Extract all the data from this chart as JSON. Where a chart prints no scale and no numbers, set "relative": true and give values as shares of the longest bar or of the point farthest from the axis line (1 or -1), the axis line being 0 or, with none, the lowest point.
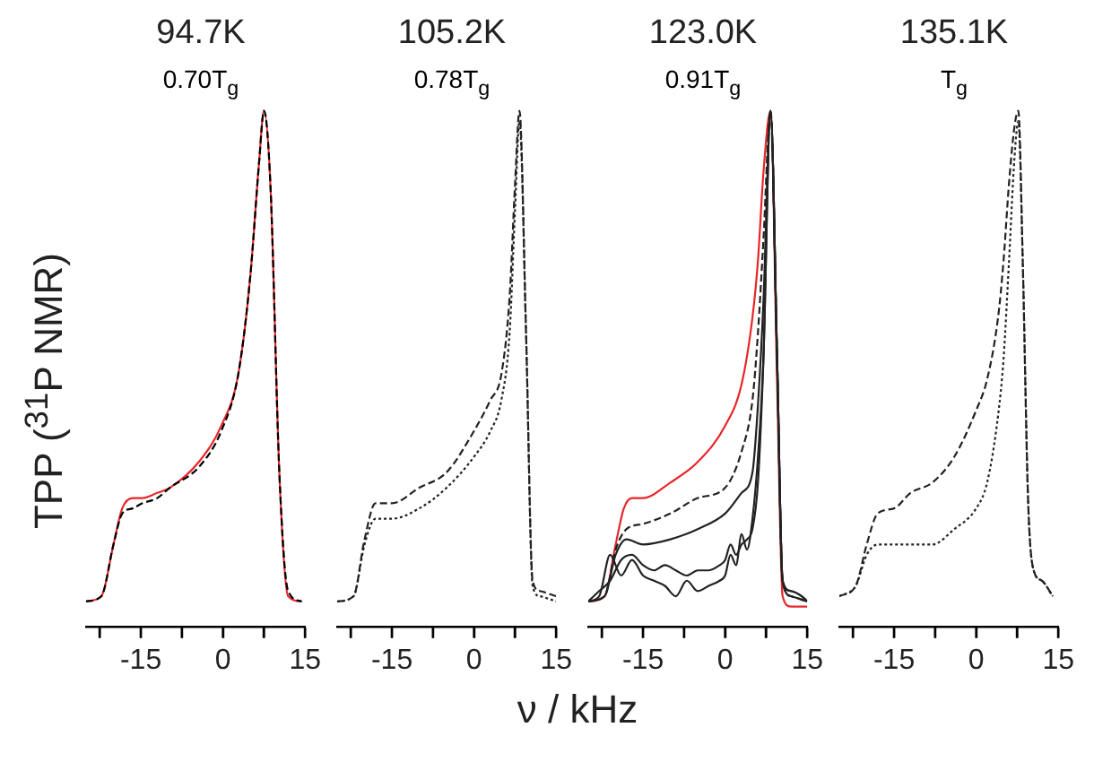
{
  "chart_data": [
    {
      "type": "line",
      "title": "94.7K",
      "subtitle": "0.70T$_{g}$",
      "ylabel": "TPP ($^{31}$P NMR)",
      "xlabel": "ν / kHz",
      "relative": true,
      "xlim": [
        -25,
        15
      ],
      "xticks": [
        {
          "value": -22.5,
          "label": null
        },
        -15,
        {
          "value": -7.5,
          "label": null
        },
        0,
        {
          "value": 7.5,
          "label": null
        },
        15
      ],
      "series": [
        {
          "color": "#000000",
          "line_style": "dashed",
          "x": [
            -25,
            -22.2,
            -20,
            -18.4,
            -16.5,
            -14.7,
            -12,
            -9.7,
            -4.4,
            -0.3,
            2.8,
            5,
            6.6,
            7.5,
            8.7,
            10.3,
            11.9,
            14.4
          ],
          "values": [
            0.05,
            0.06,
            0.16,
            0.22,
            0.23,
            0.24,
            0.25,
            0.27,
            0.31,
            0.38,
            0.49,
            0.68,
            0.9,
            1,
            0.85,
            0.3,
            0.07,
            0.05
          ]
        },
        {
          "color": "#e8262a",
          "line_style": "solid",
          "x": [
            -25,
            -22.2,
            -20,
            -18.4,
            -16.5,
            -14.7,
            -12,
            -9.7,
            -4.4,
            -0.3,
            2.8,
            5,
            6.6,
            7.5,
            8.7,
            10.3,
            11.9,
            14.4
          ],
          "values": [
            0.05,
            0.06,
            0.16,
            0.23,
            0.25,
            0.25,
            0.26,
            0.27,
            0.32,
            0.39,
            0.49,
            0.68,
            0.9,
            1,
            0.85,
            0.3,
            0.06,
            0.05
          ]
        }
      ]
    },
    {
      "type": "line",
      "title": "105.2K",
      "subtitle": "0.78T$_{g}$",
      "relative": true,
      "xlim": [
        -25,
        15
      ],
      "xticks": [
        {
          "value": -22.5,
          "label": null
        },
        -15,
        {
          "value": -7.5,
          "label": null
        },
        0,
        {
          "value": 7.5,
          "label": null
        },
        15
      ],
      "series": [
        {
          "color": "#222222",
          "line_style": "dashed",
          "x": [
            -25,
            -22,
            -20,
            -18,
            -15,
            -10,
            -5,
            0,
            3,
            5,
            6.5,
            7.5,
            8.3,
            9.5,
            10.7,
            12,
            15
          ],
          "values": [
            0.05,
            0.06,
            0.17,
            0.24,
            0.24,
            0.27,
            0.3,
            0.38,
            0.44,
            0.49,
            0.64,
            0.86,
            1,
            0.57,
            0.09,
            0.07,
            0.06
          ]
        },
        {
          "color": "#222222",
          "line_style": "dotted",
          "x": [
            -25,
            -22,
            -20,
            -18,
            -15,
            -10,
            -5,
            0,
            3,
            5,
            6.5,
            7.5,
            8.3,
            9.5,
            10.7,
            12,
            15
          ],
          "values": [
            0.05,
            0.06,
            0.16,
            0.21,
            0.21,
            0.23,
            0.27,
            0.33,
            0.38,
            0.44,
            0.57,
            0.81,
            0.98,
            0.57,
            0.08,
            0.06,
            0.05
          ]
        }
      ]
    },
    {
      "type": "line",
      "title": "123.0K",
      "subtitle": "0.91T$_{g}$",
      "relative": true,
      "xlim": [
        -25,
        15
      ],
      "xticks": [
        {
          "value": -22.5,
          "label": null
        },
        -15,
        {
          "value": -7.5,
          "label": null
        },
        0,
        {
          "value": 7.5,
          "label": null
        },
        15
      ],
      "series": [
        {
          "color": "#222222",
          "line_style": "solid",
          "x": [
            -25,
            -23,
            -21,
            -19,
            -17,
            -15,
            -13,
            -11,
            -9,
            -7,
            -5,
            -3,
            -1,
            0,
            1,
            2,
            3,
            4,
            5,
            6,
            7,
            8.3,
            9.5,
            10.5,
            12,
            14,
            15
          ],
          "values": [
            0.05,
            0.06,
            0.14,
            0.1,
            0.13,
            0.1,
            0.09,
            0.08,
            0.06,
            0.09,
            0.07,
            0.08,
            0.09,
            0.1,
            0.14,
            0.12,
            0.18,
            0.15,
            0.21,
            0.33,
            0.52,
            1,
            0.52,
            0.09,
            0.07,
            0.06,
            0.05
          ]
        },
        {
          "color": "#222222",
          "line_style": "solid",
          "x": [
            -25,
            -23,
            -21,
            -19,
            -17,
            -15,
            -13,
            -11,
            -9,
            -7,
            -5,
            -3,
            -1,
            0,
            1,
            2,
            3,
            4,
            5,
            6,
            7,
            8.3,
            9.5,
            10.5,
            12,
            14,
            15
          ],
          "values": [
            0.05,
            0.07,
            0.09,
            0.13,
            0.14,
            0.12,
            0.11,
            0.12,
            0.11,
            0.1,
            0.11,
            0.11,
            0.12,
            0.13,
            0.16,
            0.14,
            0.16,
            0.17,
            0.19,
            0.28,
            0.52,
            1,
            0.52,
            0.09,
            0.07,
            0.06,
            0.05
          ]
        },
        {
          "color": "#222222",
          "line_style": "solid",
          "x": [
            -25,
            -22,
            -20,
            -18,
            -15,
            -10,
            -5,
            0,
            3,
            5,
            6,
            7,
            8.3,
            9.5,
            10.5,
            12,
            15
          ],
          "values": [
            0.05,
            0.06,
            0.14,
            0.17,
            0.16,
            0.17,
            0.19,
            0.22,
            0.26,
            0.3,
            0.43,
            0.63,
            1,
            0.52,
            0.09,
            0.06,
            0.05
          ]
        },
        {
          "color": "#222222",
          "line_style": "dashed",
          "x": [
            -25,
            -22,
            -20,
            -18,
            -15,
            -10,
            -5,
            0,
            3,
            5,
            6,
            7,
            8.3,
            9.5,
            10.5,
            12,
            15
          ],
          "values": [
            0.05,
            0.06,
            0.15,
            0.19,
            0.2,
            0.22,
            0.25,
            0.27,
            0.34,
            0.44,
            0.57,
            0.75,
            1,
            0.52,
            0.09,
            0.06,
            0.05
          ]
        },
        {
          "color": "#e8262a",
          "line_style": "solid",
          "x": [
            -25,
            -22,
            -20,
            -18.5,
            -17,
            -15,
            -10,
            -5,
            0,
            3,
            5,
            6,
            7,
            8.3,
            9.5,
            10.5,
            12,
            15
          ],
          "values": [
            0.05,
            0.06,
            0.16,
            0.23,
            0.25,
            0.25,
            0.28,
            0.32,
            0.39,
            0.47,
            0.6,
            0.71,
            0.88,
            1,
            0.47,
            0.06,
            0.04,
            0.04
          ]
        }
      ]
    },
    {
      "type": "line",
      "title": "135.1K",
      "subtitle": "T$_{g}$",
      "relative": true,
      "xlim": [
        -25,
        15
      ],
      "xticks": [
        {
          "value": -22.5,
          "label": null
        },
        -15,
        {
          "value": -7.5,
          "label": null
        },
        0,
        {
          "value": 7.5,
          "label": null
        },
        15
      ],
      "series": [
        {
          "color": "#222222",
          "line_style": "dashed",
          "x": [
            -25,
            -22,
            -20,
            -18,
            -15,
            -12,
            -8,
            -4,
            0,
            2,
            4,
            5,
            6,
            7,
            7.7,
            8.5,
            9.5,
            10.5,
            12,
            14
          ],
          "values": [
            0.06,
            0.08,
            0.16,
            0.22,
            0.23,
            0.26,
            0.28,
            0.33,
            0.42,
            0.48,
            0.6,
            0.71,
            0.86,
            0.97,
            1,
            0.71,
            0.24,
            0.11,
            0.09,
            0.06
          ]
        },
        {
          "color": "#222222",
          "line_style": "dotted",
          "x": [
            -25,
            -22,
            -20,
            -18,
            -15,
            -12,
            -8,
            -4,
            0,
            2,
            4,
            5,
            6,
            7,
            7.7,
            8.5,
            9.5,
            10.5,
            12,
            14
          ],
          "values": [
            0.06,
            0.08,
            0.14,
            0.16,
            0.16,
            0.16,
            0.16,
            0.19,
            0.23,
            0.28,
            0.41,
            0.52,
            0.71,
            0.91,
            0.98,
            0.71,
            0.24,
            0.11,
            0.09,
            0.06
          ]
        }
      ]
    }
  ]
}
